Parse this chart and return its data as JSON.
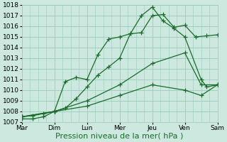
{
  "title": "",
  "xlabel": "Pression niveau de la mer( hPa )",
  "xtick_labels": [
    "Mar",
    "Dim",
    "Lun",
    "Mer",
    "Jeu",
    "Ven",
    "Sam"
  ],
  "ylim": [
    1007,
    1018
  ],
  "yticks": [
    1007,
    1008,
    1009,
    1010,
    1011,
    1012,
    1013,
    1014,
    1015,
    1016,
    1017,
    1018
  ],
  "background_color": "#cce8df",
  "grid_color": "#99ccbb",
  "line_color": "#1a6b2a",
  "lines": [
    {
      "x": [
        0,
        0.33,
        0.67,
        1.0,
        1.33,
        1.67,
        2.0,
        2.33,
        2.67,
        3.0,
        3.33,
        3.67,
        4.0,
        4.33,
        4.67,
        5.0,
        5.33,
        5.67,
        6.0
      ],
      "y": [
        1007.3,
        1007.3,
        1007.5,
        1008.0,
        1010.8,
        1011.2,
        1011.0,
        1013.3,
        1014.8,
        1015.0,
        1015.3,
        1015.4,
        1017.0,
        1017.1,
        1015.9,
        1016.1,
        1015.0,
        1015.1,
        1015.2
      ]
    },
    {
      "x": [
        0,
        0.33,
        0.67,
        1.0,
        1.33,
        1.67,
        2.0,
        2.33,
        2.67,
        3.0,
        3.33,
        3.67,
        4.0,
        4.33,
        4.67,
        5.0,
        5.5,
        5.67,
        6.0
      ],
      "y": [
        1007.5,
        1007.6,
        1007.8,
        1008.0,
        1008.3,
        1009.2,
        1010.3,
        1011.4,
        1012.2,
        1013.0,
        1015.3,
        1017.0,
        1017.8,
        1016.5,
        1015.8,
        1015.0,
        1011.0,
        1010.3,
        1010.5
      ]
    },
    {
      "x": [
        0,
        1.0,
        2.0,
        3.0,
        4.0,
        5.0,
        5.5,
        6.0
      ],
      "y": [
        1007.5,
        1008.0,
        1009.0,
        1010.5,
        1012.5,
        1013.5,
        1010.5,
        1010.5
      ]
    },
    {
      "x": [
        0,
        1.0,
        2.0,
        3.0,
        4.0,
        5.0,
        5.5,
        6.0
      ],
      "y": [
        1007.5,
        1008.0,
        1008.5,
        1009.5,
        1010.5,
        1010.0,
        1009.5,
        1010.5
      ]
    }
  ],
  "marker": "+",
  "markersize": 4,
  "linewidth": 0.9,
  "fontsize_xlabel": 8,
  "fontsize_ticks": 6.5
}
